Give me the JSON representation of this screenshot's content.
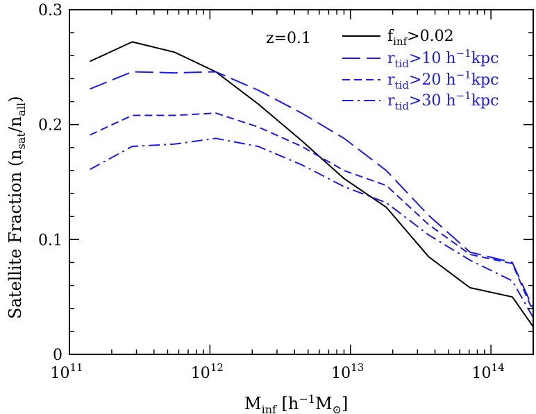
{
  "chart_data": {
    "type": "line",
    "xscale": "log",
    "xlim": [
      100000000000.0,
      200000000000000.0
    ],
    "ylim": [
      0,
      0.3
    ],
    "x_ticks": [
      {
        "value": 100000000000.0,
        "base": "10",
        "exp": "11"
      },
      {
        "value": 1000000000000.0,
        "base": "10",
        "exp": "12"
      },
      {
        "value": 10000000000000.0,
        "base": "10",
        "exp": "13"
      },
      {
        "value": 100000000000000.0,
        "base": "10",
        "exp": "14"
      }
    ],
    "y_ticks": [
      {
        "value": 0,
        "label": "0"
      },
      {
        "value": 0.1,
        "label": "0.1"
      },
      {
        "value": 0.2,
        "label": "0.2"
      },
      {
        "value": 0.3,
        "label": "0.3"
      }
    ],
    "xlabel": {
      "main": "M",
      "sub": "inf",
      "bracket_open": " [h",
      "sup": "−1",
      "unit": "M",
      "unit_sub": "⊙",
      "bracket_close": "]"
    },
    "ylabel": {
      "main": "Satellite Fraction (n",
      "sub1": "sat",
      "mid": "/n",
      "sub2": "all",
      "close": ")"
    },
    "annotation": "z=0.1",
    "legend_position": "top-right",
    "series": [
      {
        "label_main": "f",
        "label_sub": "inf",
        "label_rest": ">0.02",
        "color": "#000000",
        "dash": "",
        "x": [
          140000000000.0,
          280000000000.0,
          560000000000.0,
          1100000000000.0,
          2200000000000.0,
          4500000000000.0,
          9000000000000.0,
          18000000000000.0,
          36000000000000.0,
          71000000000000.0,
          142000000000000.0,
          200000000000000.0
        ],
        "y": [
          0.255,
          0.272,
          0.263,
          0.246,
          0.218,
          0.186,
          0.153,
          0.128,
          0.085,
          0.058,
          0.05,
          0.024
        ]
      },
      {
        "label_main": "r",
        "label_sub": "tid",
        "label_rest": ">10 h",
        "label_sup": "−1",
        "label_end": "kpc",
        "color": "#1a1af0",
        "dash": "26,9",
        "x": [
          140000000000.0,
          280000000000.0,
          560000000000.0,
          1100000000000.0,
          2200000000000.0,
          4500000000000.0,
          9000000000000.0,
          18000000000000.0,
          36000000000000.0,
          71000000000000.0,
          142000000000000.0,
          200000000000000.0
        ],
        "y": [
          0.231,
          0.246,
          0.245,
          0.246,
          0.23,
          0.21,
          0.188,
          0.16,
          0.121,
          0.089,
          0.08,
          0.04
        ]
      },
      {
        "label_main": "r",
        "label_sub": "tid",
        "label_rest": ">20 h",
        "label_sup": "−1",
        "label_end": "kpc",
        "color": "#1a1af0",
        "dash": "11,6",
        "x": [
          140000000000.0,
          280000000000.0,
          560000000000.0,
          1100000000000.0,
          2200000000000.0,
          4500000000000.0,
          9000000000000.0,
          18000000000000.0,
          36000000000000.0,
          71000000000000.0,
          142000000000000.0,
          200000000000000.0
        ],
        "y": [
          0.191,
          0.208,
          0.208,
          0.21,
          0.198,
          0.181,
          0.16,
          0.147,
          0.113,
          0.087,
          0.079,
          0.037
        ]
      },
      {
        "label_main": "r",
        "label_sub": "tid",
        "label_rest": ">30 h",
        "label_sup": "−1",
        "label_end": "kpc",
        "color": "#1a1af0",
        "dash": "16,6,3,6",
        "x": [
          140000000000.0,
          280000000000.0,
          560000000000.0,
          1100000000000.0,
          2200000000000.0,
          4500000000000.0,
          9000000000000.0,
          18000000000000.0,
          36000000000000.0,
          71000000000000.0,
          142000000000000.0,
          200000000000000.0
        ],
        "y": [
          0.161,
          0.181,
          0.183,
          0.188,
          0.181,
          0.165,
          0.146,
          0.132,
          0.104,
          0.082,
          0.064,
          0.032
        ]
      }
    ]
  }
}
